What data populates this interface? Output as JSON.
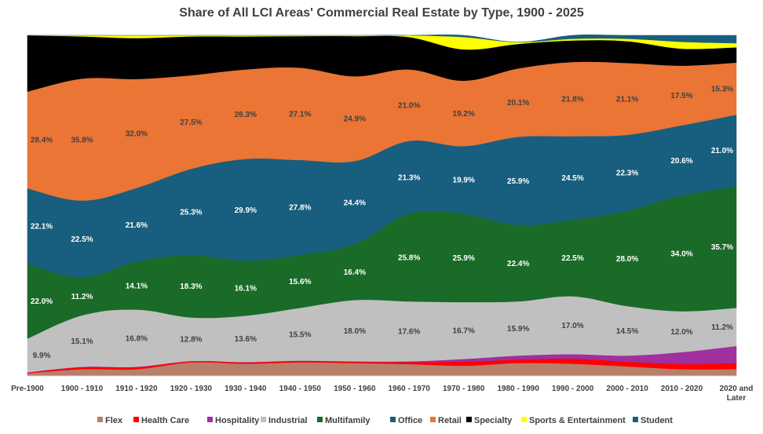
{
  "chart_data": {
    "type": "area",
    "stacked_percent": true,
    "title": "Share of All LCI Areas' Commercial Real Estate by Type, 1900 - 2025",
    "categories": [
      "Pre-1900",
      "1900 - 1910",
      "1910 - 1920",
      "1920 - 1930",
      "1930 - 1940",
      "1940 - 1950",
      "1950 - 1960",
      "1960 - 1970",
      "1970 - 1980",
      "1980 - 1990",
      "1990 - 2000",
      "2000 - 2010",
      "2010 - 2020",
      "2020 and Later"
    ],
    "ylim": [
      0,
      100
    ],
    "legend_position": "bottom",
    "series": [
      {
        "name": "Flex",
        "color": "#b87f6b",
        "values": [
          0.8,
          2.0,
          2.0,
          4.0,
          3.6,
          4.0,
          3.8,
          3.5,
          3.0,
          3.8,
          3.6,
          2.8,
          2.0,
          2.0
        ],
        "labels": []
      },
      {
        "name": "Health Care",
        "color": "#ff0000",
        "values": [
          0.2,
          0.6,
          0.6,
          0.3,
          0.4,
          0.4,
          0.4,
          0.6,
          1.2,
          1.0,
          1.5,
          1.4,
          1.5,
          1.8
        ],
        "labels": []
      },
      {
        "name": "Hospitality",
        "color": "#a02fa0",
        "values": [
          0.1,
          0.1,
          0.1,
          0.1,
          0.1,
          0.1,
          0.1,
          0.2,
          0.8,
          1.2,
          1.3,
          1.8,
          3.5,
          5.0
        ],
        "labels": []
      },
      {
        "name": "Industrial",
        "color": "#c0c0c0",
        "values": [
          9.9,
          15.1,
          16.8,
          12.8,
          13.6,
          15.5,
          18.0,
          17.6,
          16.7,
          15.9,
          17.0,
          14.5,
          12.0,
          11.2
        ],
        "labels": [
          "9.9%",
          "15.1%",
          "16.8%",
          "12.8%",
          "13.6%",
          "15.5%",
          "18.0%",
          "17.6%",
          "16.7%",
          "15.9%",
          "17.0%",
          "14.5%",
          "12.0%",
          "11.2%"
        ]
      },
      {
        "name": "Multifamily",
        "color": "#1a6b27",
        "values": [
          22.0,
          11.2,
          14.1,
          18.3,
          16.1,
          15.6,
          16.4,
          25.8,
          25.9,
          22.4,
          22.5,
          28.0,
          34.0,
          35.7
        ],
        "labels": [
          "22.0%",
          "11.2%",
          "14.1%",
          "18.3%",
          "16.1%",
          "15.6%",
          "16.4%",
          "25.8%",
          "25.9%",
          "22.4%",
          "22.5%",
          "28.0%",
          "34.0%",
          "35.7%"
        ]
      },
      {
        "name": "Office",
        "color": "#185e7e",
        "values": [
          22.1,
          22.5,
          21.6,
          25.3,
          29.9,
          27.8,
          24.4,
          21.3,
          19.9,
          25.9,
          24.5,
          22.3,
          20.6,
          21.0
        ],
        "labels": [
          "22.1%",
          "22.5%",
          "21.6%",
          "25.3%",
          "29.9%",
          "27.8%",
          "24.4%",
          "21.3%",
          "19.9%",
          "25.9%",
          "24.5%",
          "22.3%",
          "20.6%",
          "21.0%"
        ]
      },
      {
        "name": "Retail",
        "color": "#ea7535",
        "values": [
          28.4,
          35.8,
          32.0,
          27.5,
          26.3,
          27.1,
          24.9,
          21.0,
          19.2,
          20.1,
          21.8,
          21.1,
          17.5,
          15.3
        ],
        "labels": [
          "28.4%",
          "35.8%",
          "32.0%",
          "27.5%",
          "26.3%",
          "27.1%",
          "24.9%",
          "21.0%",
          "19.2%",
          "20.1%",
          "21.8%",
          "21.1%",
          "17.5%",
          "15.3%"
        ]
      },
      {
        "name": "Specialty",
        "color": "#000000",
        "values": [
          16.5,
          12.4,
          12.0,
          11.4,
          9.7,
          9.3,
          11.8,
          9.5,
          9.2,
          7.2,
          6.3,
          6.4,
          5.0,
          4.5
        ],
        "labels": []
      },
      {
        "name": "Sports & Entertainment",
        "color": "#ffff00",
        "values": [
          0.0,
          0.3,
          0.8,
          0.3,
          0.3,
          0.2,
          0.2,
          0.5,
          3.6,
          0.5,
          0.5,
          0.7,
          2.0,
          1.2
        ],
        "labels": []
      },
      {
        "name": "Student",
        "color": "#185e7e",
        "values": [
          0.0,
          0.0,
          0.0,
          0.0,
          0.0,
          0.0,
          0.0,
          0.0,
          0.5,
          0.0,
          1.0,
          1.0,
          1.9,
          2.3
        ],
        "labels": []
      }
    ]
  }
}
